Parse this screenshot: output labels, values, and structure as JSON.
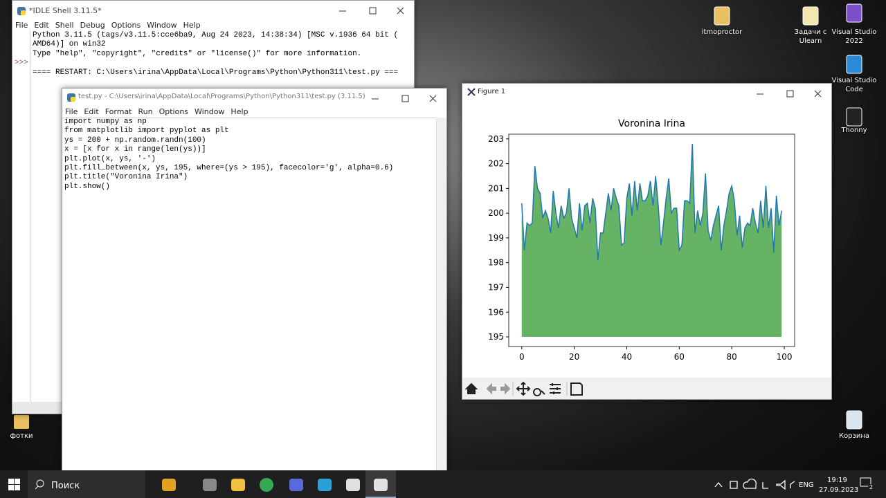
{
  "desktop": {
    "icons_right": [
      {
        "label": "itmoproctor"
      },
      {
        "label": "Задачи с Ulearn"
      },
      {
        "label": "Visual Studio 2022"
      },
      {
        "label": "Visual Studio Code"
      },
      {
        "label": "Thonny"
      },
      {
        "label": "Корзина"
      }
    ],
    "icons_left": [
      {
        "label": "фотки"
      }
    ]
  },
  "idle_shell": {
    "title": "*IDLE Shell 3.11.5*",
    "menu": [
      "File",
      "Edit",
      "Shell",
      "Debug",
      "Options",
      "Window",
      "Help"
    ],
    "prompt": ">>>",
    "lines": [
      "Python 3.11.5 (tags/v3.11.5:cce6ba9, Aug 24 2023, 14:38:34) [MSC v.1936 64 bit (",
      "AMD64)] on win32",
      "Type \"help\", \"copyright\", \"credits\" or \"license()\" for more information."
    ],
    "restart": "==== RESTART: C:\\Users\\irina\\AppData\\Local\\Programs\\Python\\Python311\\test.py ==="
  },
  "editor": {
    "title": "test.py - C:\\Users\\irina\\AppData\\Local\\Programs\\Python\\Python311\\test.py (3.11.5)",
    "menu": [
      "File",
      "Edit",
      "Format",
      "Run",
      "Options",
      "Window",
      "Help"
    ],
    "code": [
      "import numpy as np",
      "from matplotlib import pyplot as plt",
      "ys = 200 + np.random.randn(100)",
      "x = [x for x in range(len(ys))]",
      "plt.plot(x, ys, '-')",
      "plt.fill_between(x, ys, 195, where=(ys > 195), facecolor='g', alpha=0.6)",
      "plt.title(\"Voronina Irina\")",
      "plt.show()"
    ]
  },
  "figure": {
    "title": "Figure 1",
    "chart_data": {
      "type": "line",
      "title": "Voronina Irina",
      "x": [
        0,
        1,
        2,
        3,
        4,
        5,
        6,
        7,
        8,
        9,
        10,
        11,
        12,
        13,
        14,
        15,
        16,
        17,
        18,
        19,
        20,
        21,
        22,
        23,
        24,
        25,
        26,
        27,
        28,
        29,
        30,
        31,
        32,
        33,
        34,
        35,
        36,
        37,
        38,
        39,
        40,
        41,
        42,
        43,
        44,
        45,
        46,
        47,
        48,
        49,
        50,
        51,
        52,
        53,
        54,
        55,
        56,
        57,
        58,
        59,
        60,
        61,
        62,
        63,
        64,
        65,
        66,
        67,
        68,
        69,
        70,
        71,
        72,
        73,
        74,
        75,
        76,
        77,
        78,
        79,
        80,
        81,
        82,
        83,
        84,
        85,
        86,
        87,
        88,
        89,
        90,
        91,
        92,
        93,
        94,
        95,
        96,
        97,
        98,
        99
      ],
      "series": [
        {
          "color": "#1f77b4",
          "values": [
            200.4,
            198.5,
            199.6,
            199.5,
            199.6,
            201.9,
            201.0,
            200.8,
            199.8,
            200.1,
            199.8,
            199.2,
            200.9,
            200.0,
            199.4,
            200.3,
            199.8,
            200.0,
            201.0,
            199.8,
            199.4,
            199.0,
            200.4,
            199.3,
            200.3,
            200.4,
            199.6,
            200.6,
            200.2,
            198.1,
            199.2,
            199.2,
            200.0,
            200.8,
            200.1,
            201.0,
            200.6,
            200.3,
            198.7,
            198.8,
            200.6,
            201.2,
            199.9,
            201.3,
            200.1,
            201.2,
            200.5,
            200.5,
            200.7,
            201.3,
            200.3,
            201.5,
            200.3,
            198.7,
            199.6,
            200.6,
            201.4,
            200.0,
            200.2,
            200.2,
            198.5,
            198.7,
            200.5,
            200.5,
            200.4,
            202.8,
            199.2,
            200.1,
            199.5,
            200.0,
            201.6,
            199.3,
            198.9,
            199.5,
            199.9,
            200.3,
            198.5,
            199.5,
            200.1,
            200.8,
            201.1,
            200.5,
            199.1,
            199.9,
            198.6,
            199.4,
            199.6,
            199.5,
            200.2,
            199.6,
            199.2,
            200.5,
            199.4,
            201.1,
            199.4,
            200.2,
            198.4,
            200.7,
            199.5,
            200.1
          ]
        }
      ],
      "fill_base": 195,
      "fill_color": "#008000",
      "fill_alpha": 0.6,
      "xlim": [
        -4.95,
        103.95
      ],
      "xticks": [
        0,
        20,
        40,
        60,
        80,
        100
      ],
      "ylim": [
        194.61,
        203.19
      ],
      "yticks": [
        195,
        196,
        197,
        198,
        199,
        200,
        201,
        202,
        203
      ]
    }
  },
  "taskbar": {
    "search": "Поиск",
    "lang": "ENG",
    "time": "19:19",
    "date": "27.09.2023",
    "notifications": "2"
  }
}
